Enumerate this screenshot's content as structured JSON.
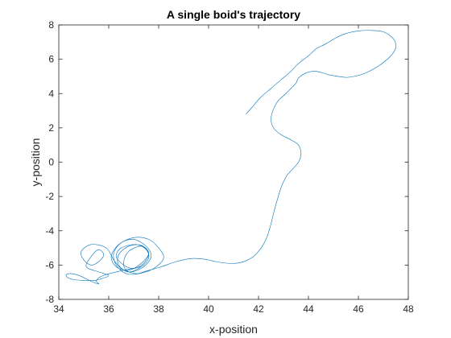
{
  "chart_data": {
    "type": "line",
    "title": "A single boid's trajectory",
    "xlabel": "x-position",
    "ylabel": "y-position",
    "xlim": [
      34,
      48
    ],
    "ylim": [
      -8,
      8
    ],
    "xticks": [
      "34",
      "36",
      "38",
      "40",
      "42",
      "44",
      "46",
      "48"
    ],
    "yticks": [
      "-8",
      "-6",
      "-4",
      "-2",
      "0",
      "2",
      "4",
      "6",
      "8"
    ],
    "grid": false,
    "line_color": "#0072bd",
    "series": [
      {
        "x": [
          41.5,
          41.8,
          42.1,
          42.5,
          42.9,
          43.3,
          43.6,
          44.0,
          44.3,
          44.7,
          45.1,
          45.5,
          46.0,
          46.5,
          47.0,
          47.4,
          47.5,
          47.3,
          46.8,
          46.2,
          45.6,
          45.2,
          44.8,
          44.3,
          43.9,
          43.6,
          43.5,
          43.3,
          43.1,
          42.8,
          42.6,
          42.5,
          42.6,
          42.9,
          43.3,
          43.6,
          43.7,
          43.6,
          43.3,
          43.15,
          43.05,
          42.9,
          42.75,
          42.6,
          42.5,
          42.4,
          42.3,
          42.15,
          42.0,
          41.8,
          41.5,
          41.2,
          40.8,
          40.3,
          39.8,
          39.3,
          38.7,
          38.1,
          37.5,
          37.1,
          36.7,
          36.6,
          36.8,
          37.3,
          37.6,
          37.4,
          37.0,
          36.6,
          36.3,
          36.5,
          37.1,
          37.5,
          37.6,
          37.3,
          36.8,
          36.4,
          36.4,
          36.8,
          37.3,
          37.6,
          37.3,
          36.8,
          36.3,
          36.1,
          36.4,
          37.0,
          37.6,
          38.0,
          38.2,
          37.8,
          37.2,
          36.7,
          36.3,
          36.2,
          36.5,
          37.0,
          37.5,
          37.7,
          37.4,
          36.9,
          36.5,
          36.2,
          35.9,
          35.3,
          34.9,
          35.0,
          35.3,
          35.6,
          35.8,
          35.6,
          35.3,
          35.1,
          35.6,
          36.0,
          35.7,
          35.4,
          34.6,
          34.3,
          34.4,
          34.8,
          35.3,
          35.6,
          35.5,
          35.8,
          36.6,
          37.3
        ],
        "y": [
          2.8,
          3.3,
          3.8,
          4.3,
          4.8,
          5.3,
          5.75,
          6.2,
          6.6,
          6.9,
          7.25,
          7.5,
          7.65,
          7.68,
          7.6,
          7.2,
          6.7,
          6.2,
          5.6,
          5.15,
          4.95,
          5.0,
          5.1,
          5.3,
          5.2,
          4.9,
          4.6,
          4.3,
          4.0,
          3.6,
          3.1,
          2.5,
          2.0,
          1.6,
          1.3,
          1.0,
          0.5,
          0.0,
          -0.5,
          -0.75,
          -1.0,
          -1.5,
          -2.2,
          -3.0,
          -3.6,
          -4.1,
          -4.5,
          -4.9,
          -5.2,
          -5.5,
          -5.75,
          -5.88,
          -5.9,
          -5.8,
          -5.65,
          -5.62,
          -5.8,
          -6.1,
          -6.35,
          -6.5,
          -6.3,
          -5.8,
          -5.2,
          -4.9,
          -5.3,
          -5.9,
          -6.2,
          -6.0,
          -5.5,
          -5.0,
          -4.8,
          -5.1,
          -5.6,
          -6.1,
          -6.4,
          -6.0,
          -5.4,
          -4.9,
          -4.85,
          -5.3,
          -5.9,
          -6.3,
          -6.1,
          -5.5,
          -4.8,
          -4.4,
          -4.5,
          -5.0,
          -5.6,
          -6.2,
          -6.5,
          -6.5,
          -6.0,
          -5.3,
          -4.7,
          -4.5,
          -4.9,
          -5.5,
          -6.1,
          -6.4,
          -6.2,
          -5.7,
          -5.0,
          -4.8,
          -5.2,
          -5.7,
          -6.0,
          -5.8,
          -5.4,
          -5.1,
          -5.5,
          -6.1,
          -6.4,
          -6.6,
          -6.8,
          -6.9,
          -6.85,
          -6.65,
          -6.5,
          -6.6,
          -6.95,
          -7.1,
          -6.9,
          -6.6,
          -6.3,
          -6.1
        ]
      }
    ]
  }
}
